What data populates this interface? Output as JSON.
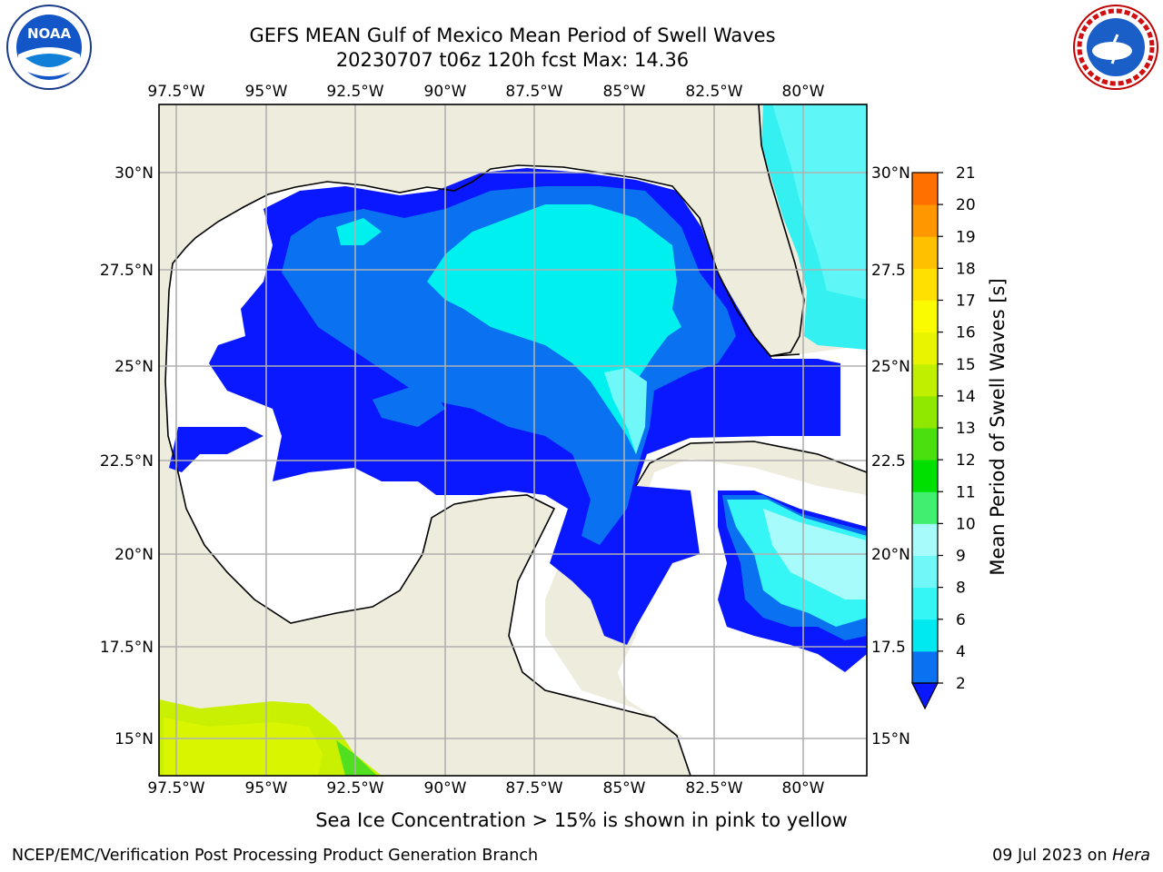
{
  "title_line1": "GEFS MEAN Gulf of Mexico Mean Period of Swell Waves",
  "title_line2": "20230707 t06z 120h fcst   Max: 14.36",
  "lon_labels": [
    "97.5°W",
    "95°W",
    "92.5°W",
    "90°W",
    "87.5°W",
    "85°W",
    "82.5°W",
    "80°W"
  ],
  "lat_labels_left": [
    "30°N",
    "27.5°N",
    "25°N",
    "22.5°N",
    "20°N",
    "17.5°N",
    "15°N"
  ],
  "lat_labels_right": [
    "30°N",
    "27.5",
    "25°N",
    "22.5",
    "20°N",
    "17.5",
    "15°N"
  ],
  "colorbar": {
    "label": "Mean Period of Swell Waves [s]",
    "ticks": [
      "2",
      "4",
      "6",
      "8",
      "9",
      "10",
      "11",
      "12",
      "13",
      "14",
      "15",
      "16",
      "17",
      "18",
      "19",
      "20",
      "21"
    ],
    "colors": [
      "#0a72f0",
      "#00e8f0",
      "#35f5f5",
      "#70f8f8",
      "#a8fbfb",
      "#40ef70",
      "#00e000",
      "#4ae010",
      "#90e800",
      "#c0f000",
      "#e8f400",
      "#fafa00",
      "#ffe000",
      "#ffc000",
      "#ff9800",
      "#ff7000",
      "#ff4800",
      "#ff2000",
      "#ff0000"
    ],
    "under_color": "#0a18ff"
  },
  "colors": {
    "land": "#eeecdc",
    "ocean_white": "#ffffff",
    "grid": "#b0b0b0",
    "blue_2": "#0a18ff",
    "blue_4": "#0a72f0",
    "cyan_6": "#00f0f0",
    "cyan_8": "#70f8f8",
    "green_ice": "#c8f000"
  },
  "note": "Sea Ice Concentration > 15% is shown in pink to yellow",
  "footer_left": "NCEP/EMC/Verification Post Processing Product Generation Branch",
  "footer_date": "09 Jul 2023 on ",
  "footer_host": "Hera",
  "logos": {
    "noaa_text": "NOAA",
    "nws_text": "NATIONAL WEATHER SERVICE"
  }
}
